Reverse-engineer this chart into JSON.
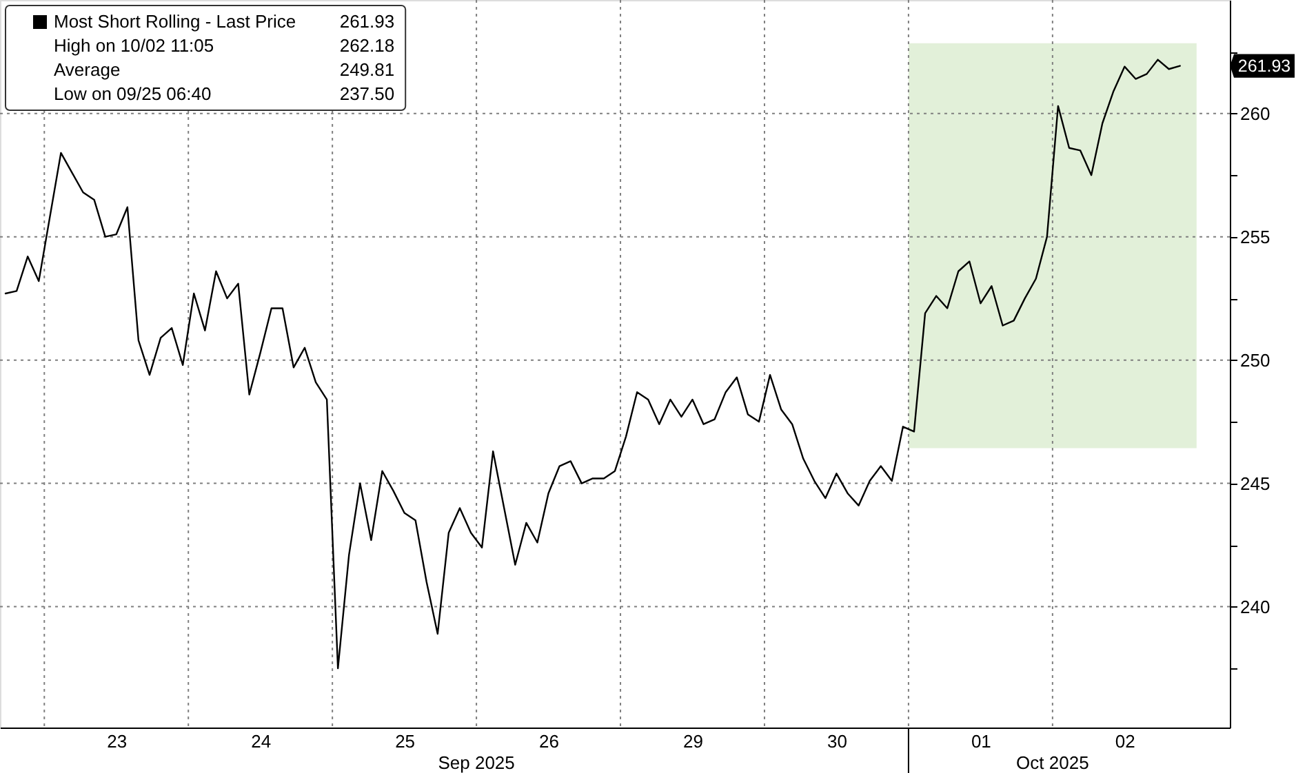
{
  "chart_data": {
    "type": "line",
    "categories": [
      null,
      null,
      null,
      null,
      null,
      null,
      null,
      null,
      null,
      null,
      "23",
      null,
      null,
      null,
      null,
      null,
      null,
      null,
      null,
      null,
      null,
      null,
      null,
      "24",
      null,
      null,
      null,
      null,
      null,
      null,
      null,
      null,
      null,
      null,
      null,
      null,
      "25",
      null,
      null,
      null,
      null,
      null,
      null,
      null,
      null,
      null,
      null,
      null,
      null,
      "26",
      null,
      null,
      null,
      null,
      null,
      null,
      null,
      null,
      null,
      null,
      null,
      null,
      "29",
      null,
      null,
      null,
      null,
      null,
      null,
      null,
      null,
      null,
      null,
      null,
      null,
      "30",
      null,
      null,
      null,
      null,
      null,
      null,
      null,
      null,
      null,
      null,
      null,
      null,
      "01",
      null,
      null,
      null,
      null,
      null,
      null,
      null,
      null,
      null,
      null,
      null,
      null,
      "02",
      null,
      null,
      null,
      null,
      null,
      null,
      null,
      null,
      null
    ],
    "series": [
      {
        "name": "Most Short Rolling - Last Price",
        "color": "#000000",
        "values": [
          252.7,
          252.8,
          254.2,
          253.2,
          255.8,
          258.4,
          257.6,
          256.8,
          256.5,
          255.0,
          255.1,
          256.2,
          250.8,
          249.4,
          250.9,
          251.3,
          249.8,
          252.7,
          251.2,
          253.6,
          252.5,
          253.1,
          248.6,
          250.3,
          252.1,
          252.1,
          249.7,
          250.5,
          249.1,
          248.4,
          237.5,
          242.1,
          245.0,
          242.7,
          245.5,
          244.7,
          243.8,
          243.5,
          241.0,
          238.9,
          243.0,
          244.0,
          243.0,
          242.4,
          246.3,
          244.0,
          241.7,
          243.4,
          242.6,
          244.6,
          245.7,
          245.9,
          245.0,
          245.2,
          245.2,
          245.5,
          246.9,
          248.7,
          248.4,
          247.4,
          248.4,
          247.7,
          248.4,
          247.4,
          247.6,
          248.7,
          249.3,
          247.8,
          247.5,
          249.4,
          248.0,
          247.4,
          246.0,
          245.1,
          244.4,
          245.4,
          244.6,
          244.1,
          245.1,
          245.7,
          245.1,
          247.3,
          247.1,
          251.9,
          252.6,
          252.1,
          253.6,
          254.0,
          252.3,
          253.0,
          251.4,
          251.6,
          252.5,
          253.3,
          255.0,
          260.3,
          258.6,
          258.5,
          257.5,
          259.6,
          260.9,
          261.9,
          261.4,
          261.6,
          262.18,
          261.8,
          261.93,
          null,
          null,
          null,
          null
        ]
      }
    ],
    "ylim": [
      235.1,
      264.6
    ],
    "yticks": [
      {
        "value": 237.5,
        "label": null
      },
      240,
      {
        "value": 242.5,
        "label": null
      },
      245,
      {
        "value": 247.5,
        "label": null
      },
      250,
      {
        "value": 252.5,
        "label": null
      },
      255,
      {
        "value": 257.5,
        "label": null
      },
      260,
      {
        "value": 262.5,
        "label": null
      }
    ],
    "grid": true,
    "legend": "top left",
    "annotations": [
      "261.93",
      "High on 10/02 11:05",
      "262.18",
      "Average",
      "249.81",
      "Low on 09/25 06:40",
      "237.50",
      "261.93",
      "Sep 2025",
      "Oct 2025"
    ]
  }
}
